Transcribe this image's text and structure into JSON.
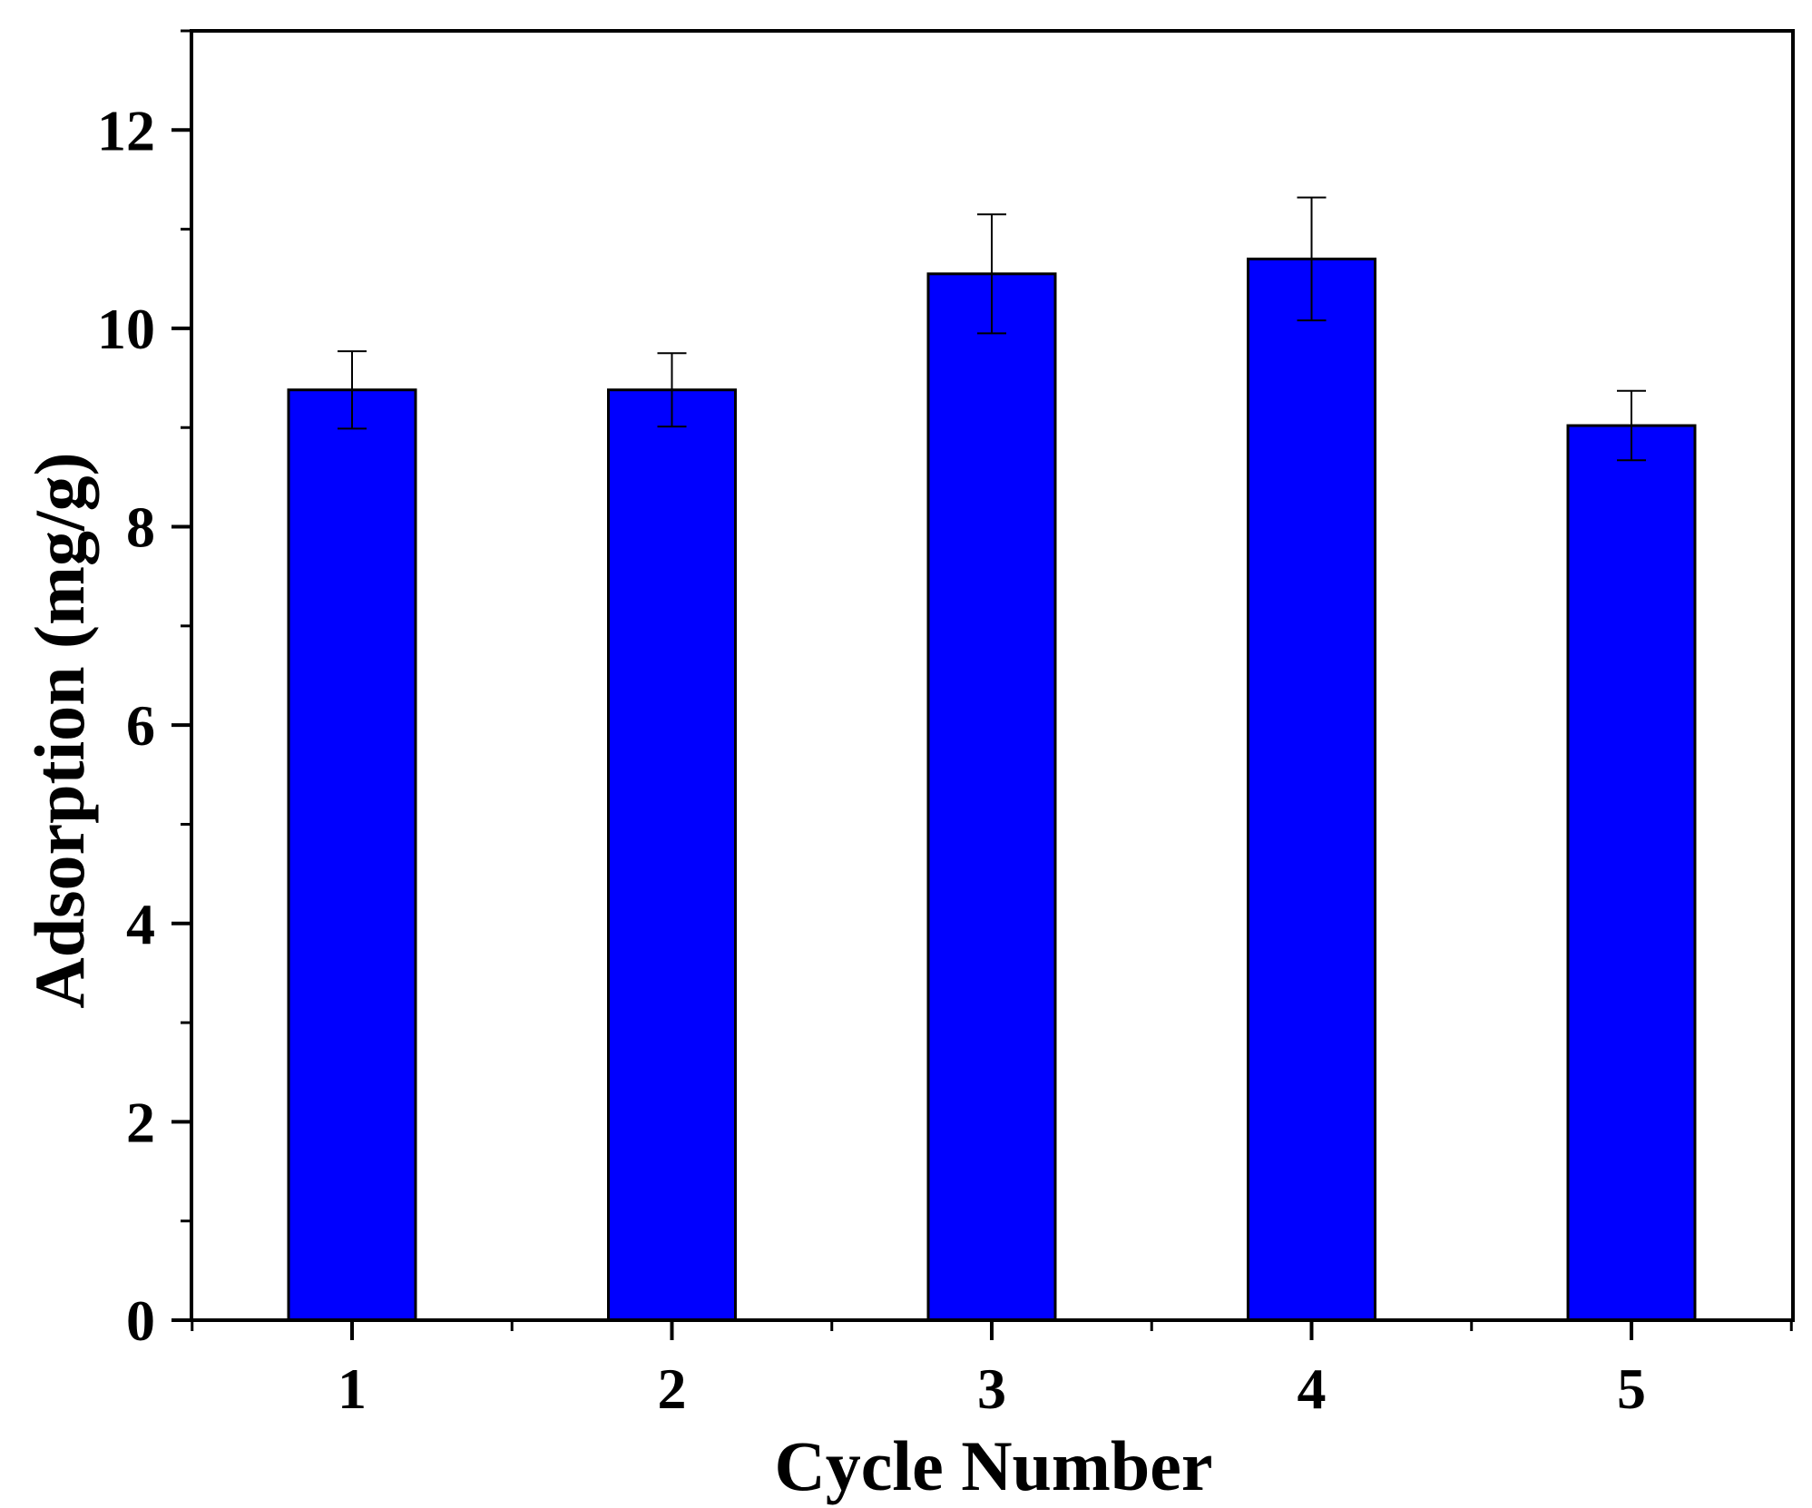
{
  "chart_data": {
    "type": "bar",
    "title": "",
    "xlabel": "Cycle Number",
    "ylabel": "Adsorption (mg/g)",
    "categories": [
      "1",
      "2",
      "3",
      "4",
      "5"
    ],
    "values": [
      9.38,
      9.38,
      10.55,
      10.7,
      9.02
    ],
    "errors": [
      0.39,
      0.37,
      0.6,
      0.62,
      0.35
    ],
    "ylim": [
      0,
      13
    ],
    "y_major_ticks": [
      0,
      2,
      4,
      6,
      8,
      10,
      12
    ],
    "y_tick_labels": [
      "0",
      "2",
      "4",
      "6",
      "8",
      "10",
      "12"
    ],
    "y_minor_ticks": [
      1,
      3,
      5,
      7,
      9,
      11,
      13
    ],
    "grid": false,
    "legend": "none",
    "bar_color": "#0000ff",
    "edge_color": "#000000"
  }
}
